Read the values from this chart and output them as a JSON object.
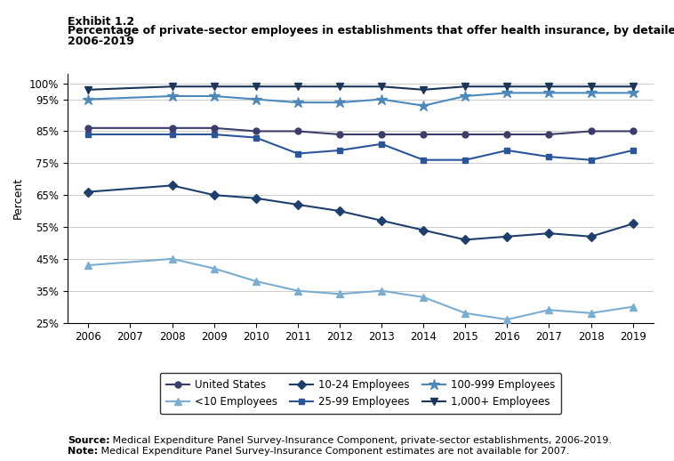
{
  "title_line1": "Exhibit 1.2",
  "title_line2": "Percentage of private-sector employees in establishments that offer health insurance, by detailed firm size,",
  "title_line3": "2006-2019",
  "ylabel": "Percent",
  "years": [
    2006,
    2007,
    2008,
    2009,
    2010,
    2011,
    2012,
    2013,
    2014,
    2015,
    2016,
    2017,
    2018,
    2019
  ],
  "series": [
    {
      "label": "United States",
      "values": [
        86,
        null,
        86,
        86,
        85,
        85,
        84,
        84,
        84,
        84,
        84,
        84,
        85,
        85
      ],
      "color": "#3d3d6b",
      "marker": "o",
      "markersize": 5,
      "linewidth": 1.5,
      "zorder": 4
    },
    {
      "label": "<10 Employees",
      "values": [
        43,
        null,
        45,
        42,
        38,
        35,
        34,
        35,
        33,
        28,
        26,
        29,
        28,
        30
      ],
      "color": "#7aadcf",
      "marker": "^",
      "markersize": 6,
      "linewidth": 1.5,
      "zorder": 3
    },
    {
      "label": "10-24 Employees",
      "values": [
        66,
        null,
        68,
        65,
        64,
        62,
        60,
        57,
        54,
        51,
        52,
        53,
        52,
        56
      ],
      "color": "#1e3f6e",
      "marker": "D",
      "markersize": 5,
      "linewidth": 1.5,
      "zorder": 3
    },
    {
      "label": "25-99 Employees",
      "values": [
        84,
        null,
        84,
        84,
        83,
        78,
        79,
        81,
        76,
        76,
        79,
        77,
        76,
        79
      ],
      "color": "#2a5599",
      "marker": "s",
      "markersize": 5,
      "linewidth": 1.5,
      "zorder": 3
    },
    {
      "label": "100-999 Employees",
      "values": [
        95,
        null,
        96,
        96,
        95,
        94,
        94,
        95,
        93,
        96,
        97,
        97,
        97,
        97
      ],
      "color": "#4d88bb",
      "marker": "*",
      "markersize": 9,
      "linewidth": 1.5,
      "zorder": 5
    },
    {
      "label": "1,000+ Employees",
      "values": [
        98,
        null,
        99,
        99,
        99,
        99,
        99,
        99,
        98,
        99,
        99,
        99,
        99,
        99
      ],
      "color": "#1a3558",
      "marker": "v",
      "markersize": 6,
      "linewidth": 1.5,
      "zorder": 5
    }
  ],
  "ylim": [
    25,
    103
  ],
  "yticks": [
    25,
    35,
    45,
    55,
    65,
    75,
    85,
    95,
    100
  ],
  "ytick_labels": [
    "25%",
    "35%",
    "45%",
    "55%",
    "65%",
    "75%",
    "85%",
    "95%",
    "100%"
  ],
  "source_text_bold": "Source:",
  "source_text_rest": " Medical Expenditure Panel Survey-Insurance Component, private-sector establishments, 2006-2019.",
  "note_text_bold": "Note:",
  "note_text_rest": " Medical Expenditure Panel Survey-Insurance Component estimates are not available for 2007.",
  "background_color": "#ffffff",
  "grid_color": "#cccccc",
  "legend_row1": [
    "United States",
    "<10 Employees",
    "10-24 Employees"
  ],
  "legend_row2": [
    "25-99 Employees",
    "100-999 Employees",
    "1,000+ Employees"
  ]
}
